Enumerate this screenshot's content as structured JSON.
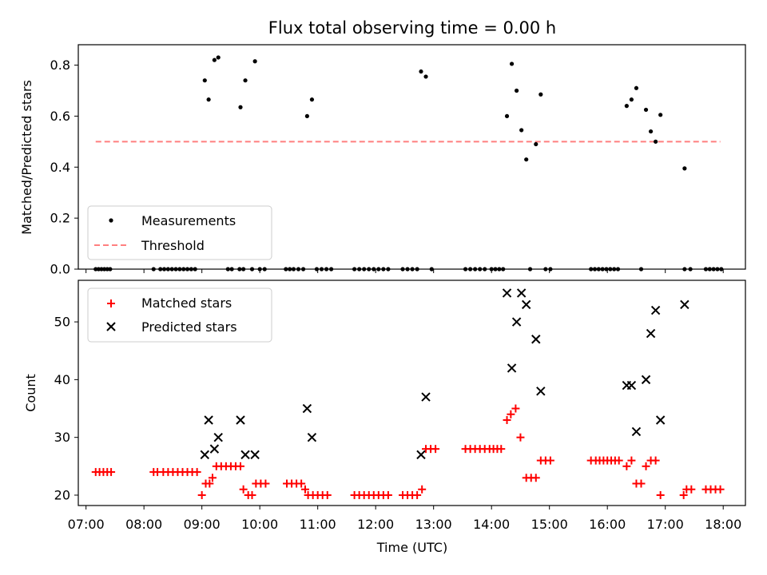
{
  "chart_data": [
    {
      "type": "scatter",
      "title": "Flux total observing time = 0.00 h",
      "ylabel": "Matched/Predicted stars",
      "xlabel": "",
      "xlim": [
        "06:52",
        "18:23"
      ],
      "ylim": [
        0,
        0.88
      ],
      "yticks": [
        "0.0",
        "0.2",
        "0.4",
        "0.6",
        "0.8"
      ],
      "grid": false,
      "legend_position": "lower-left",
      "series": [
        {
          "name": "Measurements",
          "color": "#000000",
          "marker": "dot",
          "points": [
            [
              "07:10",
              0
            ],
            [
              "07:13",
              0
            ],
            [
              "07:16",
              0
            ],
            [
              "07:19",
              0
            ],
            [
              "07:22",
              0
            ],
            [
              "07:25",
              0
            ],
            [
              "08:10",
              0
            ],
            [
              "08:17",
              0
            ],
            [
              "08:21",
              0
            ],
            [
              "08:25",
              0
            ],
            [
              "08:29",
              0
            ],
            [
              "08:33",
              0
            ],
            [
              "08:37",
              0
            ],
            [
              "08:41",
              0
            ],
            [
              "08:45",
              0
            ],
            [
              "08:49",
              0
            ],
            [
              "08:53",
              0
            ],
            [
              "09:03",
              0.74
            ],
            [
              "09:07",
              0.665
            ],
            [
              "09:13",
              0.82
            ],
            [
              "09:17",
              0.83
            ],
            [
              "09:27",
              0
            ],
            [
              "09:31",
              0
            ],
            [
              "09:39",
              0
            ],
            [
              "09:43",
              0
            ],
            [
              "09:40",
              0.635
            ],
            [
              "09:45",
              0.74
            ],
            [
              "09:52",
              0
            ],
            [
              "09:55",
              0.815
            ],
            [
              "10:00",
              0
            ],
            [
              "10:05",
              0
            ],
            [
              "10:27",
              0
            ],
            [
              "10:31",
              0
            ],
            [
              "10:35",
              0
            ],
            [
              "10:40",
              0
            ],
            [
              "10:45",
              0
            ],
            [
              "10:49",
              0.6
            ],
            [
              "10:54",
              0.665
            ],
            [
              "10:59",
              0
            ],
            [
              "11:04",
              0
            ],
            [
              "11:09",
              0
            ],
            [
              "11:14",
              0
            ],
            [
              "11:38",
              0
            ],
            [
              "11:43",
              0
            ],
            [
              "11:48",
              0
            ],
            [
              "11:53",
              0
            ],
            [
              "11:58",
              0
            ],
            [
              "12:03",
              0
            ],
            [
              "12:08",
              0
            ],
            [
              "12:13",
              0
            ],
            [
              "12:28",
              0
            ],
            [
              "12:33",
              0
            ],
            [
              "12:38",
              0
            ],
            [
              "12:43",
              0
            ],
            [
              "12:47",
              0.775
            ],
            [
              "12:52",
              0.755
            ],
            [
              "12:58",
              0
            ],
            [
              "13:33",
              0
            ],
            [
              "13:38",
              0
            ],
            [
              "13:43",
              0
            ],
            [
              "13:48",
              0
            ],
            [
              "13:53",
              0
            ],
            [
              "14:00",
              0
            ],
            [
              "14:04",
              0
            ],
            [
              "14:08",
              0
            ],
            [
              "14:12",
              0
            ],
            [
              "14:16",
              0.6
            ],
            [
              "14:21",
              0.805
            ],
            [
              "14:26",
              0.7
            ],
            [
              "14:31",
              0.545
            ],
            [
              "14:36",
              0.43
            ],
            [
              "14:40",
              0
            ],
            [
              "14:46",
              0.49
            ],
            [
              "14:51",
              0.685
            ],
            [
              "14:56",
              0
            ],
            [
              "15:01",
              0
            ],
            [
              "15:43",
              0
            ],
            [
              "15:47",
              0
            ],
            [
              "15:51",
              0
            ],
            [
              "15:55",
              0
            ],
            [
              "15:59",
              0
            ],
            [
              "16:03",
              0
            ],
            [
              "16:07",
              0
            ],
            [
              "16:11",
              0
            ],
            [
              "16:20",
              0.64
            ],
            [
              "16:25",
              0.665
            ],
            [
              "16:30",
              0.71
            ],
            [
              "16:35",
              0
            ],
            [
              "16:40",
              0.625
            ],
            [
              "16:45",
              0.54
            ],
            [
              "16:50",
              0.5
            ],
            [
              "16:55",
              0.605
            ],
            [
              "17:20",
              0.395
            ],
            [
              "17:20",
              0
            ],
            [
              "17:26",
              0
            ],
            [
              "17:42",
              0
            ],
            [
              "17:46",
              0
            ],
            [
              "17:50",
              0
            ],
            [
              "17:54",
              0
            ],
            [
              "17:58",
              0
            ]
          ]
        },
        {
          "name": "Threshold",
          "color": "#ff7f7f",
          "style": "dashed",
          "points": [
            [
              "07:10",
              0.5
            ],
            [
              "17:57",
              0.5
            ]
          ]
        }
      ]
    },
    {
      "type": "scatter",
      "ylabel": "Count",
      "xlabel": "Time (UTC)",
      "xlim": [
        "06:52",
        "18:23"
      ],
      "ylim": [
        18.2,
        57.2
      ],
      "xticks": [
        "07:00",
        "08:00",
        "09:00",
        "10:00",
        "11:00",
        "12:00",
        "13:00",
        "14:00",
        "15:00",
        "16:00",
        "17:00",
        "18:00"
      ],
      "yticks": [
        "20",
        "30",
        "40",
        "50"
      ],
      "grid": false,
      "legend_position": "upper-left",
      "series": [
        {
          "name": "Matched stars",
          "color": "#ff0000",
          "marker": "plus",
          "points": [
            [
              "07:10",
              24
            ],
            [
              "07:14",
              24
            ],
            [
              "07:18",
              24
            ],
            [
              "07:22",
              24
            ],
            [
              "07:26",
              24
            ],
            [
              "08:10",
              24
            ],
            [
              "08:14",
              24
            ],
            [
              "08:20",
              24
            ],
            [
              "08:25",
              24
            ],
            [
              "08:30",
              24
            ],
            [
              "08:35",
              24
            ],
            [
              "08:40",
              24
            ],
            [
              "08:45",
              24
            ],
            [
              "08:50",
              24
            ],
            [
              "08:55",
              24
            ],
            [
              "09:00",
              20
            ],
            [
              "09:04",
              22
            ],
            [
              "09:08",
              22
            ],
            [
              "09:11",
              23
            ],
            [
              "09:15",
              25
            ],
            [
              "09:20",
              25
            ],
            [
              "09:25",
              25
            ],
            [
              "09:30",
              25
            ],
            [
              "09:35",
              25
            ],
            [
              "09:40",
              25
            ],
            [
              "09:43",
              21
            ],
            [
              "09:48",
              20
            ],
            [
              "09:52",
              20
            ],
            [
              "09:56",
              22
            ],
            [
              "10:01",
              22
            ],
            [
              "10:06",
              22
            ],
            [
              "10:28",
              22
            ],
            [
              "10:33",
              22
            ],
            [
              "10:38",
              22
            ],
            [
              "10:43",
              22
            ],
            [
              "10:47",
              21
            ],
            [
              "10:50",
              20
            ],
            [
              "10:55",
              20
            ],
            [
              "11:00",
              20
            ],
            [
              "11:05",
              20
            ],
            [
              "11:10",
              20
            ],
            [
              "11:38",
              20
            ],
            [
              "11:43",
              20
            ],
            [
              "11:48",
              20
            ],
            [
              "11:53",
              20
            ],
            [
              "11:58",
              20
            ],
            [
              "12:03",
              20
            ],
            [
              "12:08",
              20
            ],
            [
              "12:13",
              20
            ],
            [
              "12:28",
              20
            ],
            [
              "12:33",
              20
            ],
            [
              "12:38",
              20
            ],
            [
              "12:43",
              20
            ],
            [
              "12:48",
              21
            ],
            [
              "12:52",
              28
            ],
            [
              "12:57",
              28
            ],
            [
              "13:02",
              28
            ],
            [
              "13:33",
              28
            ],
            [
              "13:38",
              28
            ],
            [
              "13:43",
              28
            ],
            [
              "13:48",
              28
            ],
            [
              "13:53",
              28
            ],
            [
              "13:58",
              28
            ],
            [
              "14:02",
              28
            ],
            [
              "14:06",
              28
            ],
            [
              "14:10",
              28
            ],
            [
              "14:16",
              33
            ],
            [
              "14:20",
              34
            ],
            [
              "14:25",
              35
            ],
            [
              "14:30",
              30
            ],
            [
              "14:36",
              23
            ],
            [
              "14:41",
              23
            ],
            [
              "14:46",
              23
            ],
            [
              "14:51",
              26
            ],
            [
              "14:56",
              26
            ],
            [
              "15:01",
              26
            ],
            [
              "15:43",
              26
            ],
            [
              "15:48",
              26
            ],
            [
              "15:52",
              26
            ],
            [
              "15:56",
              26
            ],
            [
              "16:00",
              26
            ],
            [
              "16:04",
              26
            ],
            [
              "16:08",
              26
            ],
            [
              "16:12",
              26
            ],
            [
              "16:20",
              25
            ],
            [
              "16:25",
              26
            ],
            [
              "16:30",
              22
            ],
            [
              "16:35",
              22
            ],
            [
              "16:40",
              25
            ],
            [
              "16:45",
              26
            ],
            [
              "16:50",
              26
            ],
            [
              "16:55",
              20
            ],
            [
              "17:19",
              20
            ],
            [
              "17:22",
              21
            ],
            [
              "17:27",
              21
            ],
            [
              "17:42",
              21
            ],
            [
              "17:47",
              21
            ],
            [
              "17:52",
              21
            ],
            [
              "17:57",
              21
            ]
          ]
        },
        {
          "name": "Predicted stars",
          "color": "#000000",
          "marker": "x",
          "points": [
            [
              "09:03",
              27
            ],
            [
              "09:07",
              33
            ],
            [
              "09:13",
              28
            ],
            [
              "09:17",
              30
            ],
            [
              "09:40",
              33
            ],
            [
              "09:45",
              27
            ],
            [
              "09:55",
              27
            ],
            [
              "10:49",
              35
            ],
            [
              "10:54",
              30
            ],
            [
              "12:47",
              27
            ],
            [
              "12:52",
              37
            ],
            [
              "14:16",
              55
            ],
            [
              "14:21",
              42
            ],
            [
              "14:26",
              50
            ],
            [
              "14:31",
              55
            ],
            [
              "14:36",
              53
            ],
            [
              "14:46",
              47
            ],
            [
              "14:51",
              38
            ],
            [
              "16:20",
              39
            ],
            [
              "16:25",
              39
            ],
            [
              "16:30",
              31
            ],
            [
              "16:40",
              40
            ],
            [
              "16:45",
              48
            ],
            [
              "16:50",
              52
            ],
            [
              "16:55",
              33
            ],
            [
              "17:20",
              53
            ]
          ]
        }
      ]
    }
  ]
}
